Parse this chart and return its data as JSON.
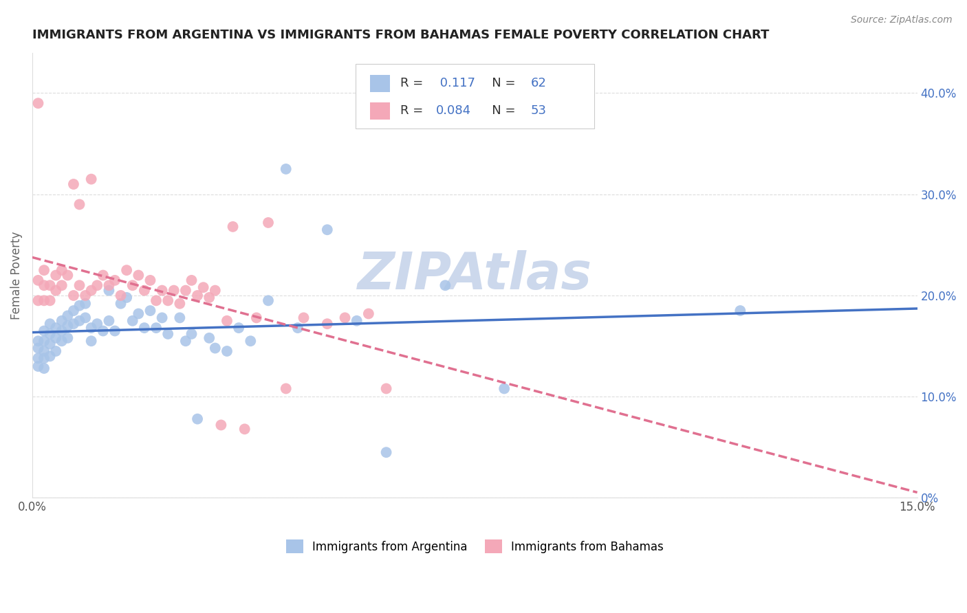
{
  "title": "IMMIGRANTS FROM ARGENTINA VS IMMIGRANTS FROM BAHAMAS FEMALE POVERTY CORRELATION CHART",
  "source": "Source: ZipAtlas.com",
  "ylabel": "Female Poverty",
  "legend1_label": "Immigrants from Argentina",
  "legend2_label": "Immigrants from Bahamas",
  "R_argentina": 0.117,
  "N_argentina": 62,
  "R_bahamas": 0.084,
  "N_bahamas": 53,
  "color_argentina": "#a8c4e8",
  "color_bahamas": "#f4a8b8",
  "line_color_argentina": "#4472c4",
  "line_color_bahamas": "#e07090",
  "watermark_color": "#ccd8ec",
  "background_color": "#ffffff",
  "xlim": [
    0.0,
    0.15
  ],
  "ylim": [
    0.0,
    0.44
  ],
  "right_ytick_vals": [
    0.0,
    0.1,
    0.2,
    0.3,
    0.4
  ],
  "right_ytick_labels": [
    "0%",
    "10.0%",
    "20.0%",
    "30.0%",
    "40.0%"
  ],
  "argentina_x": [
    0.001,
    0.001,
    0.001,
    0.001,
    0.002,
    0.002,
    0.002,
    0.002,
    0.002,
    0.003,
    0.003,
    0.003,
    0.003,
    0.004,
    0.004,
    0.004,
    0.005,
    0.005,
    0.005,
    0.006,
    0.006,
    0.006,
    0.007,
    0.007,
    0.008,
    0.008,
    0.009,
    0.009,
    0.01,
    0.01,
    0.011,
    0.012,
    0.013,
    0.013,
    0.014,
    0.015,
    0.016,
    0.017,
    0.018,
    0.019,
    0.02,
    0.021,
    0.022,
    0.023,
    0.025,
    0.026,
    0.027,
    0.028,
    0.03,
    0.031,
    0.033,
    0.035,
    0.037,
    0.04,
    0.043,
    0.045,
    0.05,
    0.055,
    0.06,
    0.07,
    0.08,
    0.12
  ],
  "argentina_y": [
    0.155,
    0.148,
    0.138,
    0.13,
    0.165,
    0.155,
    0.145,
    0.138,
    0.128,
    0.172,
    0.162,
    0.152,
    0.14,
    0.168,
    0.158,
    0.145,
    0.175,
    0.165,
    0.155,
    0.18,
    0.17,
    0.158,
    0.185,
    0.172,
    0.19,
    0.175,
    0.192,
    0.178,
    0.168,
    0.155,
    0.172,
    0.165,
    0.205,
    0.175,
    0.165,
    0.192,
    0.198,
    0.175,
    0.182,
    0.168,
    0.185,
    0.168,
    0.178,
    0.162,
    0.178,
    0.155,
    0.162,
    0.078,
    0.158,
    0.148,
    0.145,
    0.168,
    0.155,
    0.195,
    0.325,
    0.168,
    0.265,
    0.175,
    0.045,
    0.21,
    0.108,
    0.185
  ],
  "bahamas_x": [
    0.001,
    0.001,
    0.001,
    0.002,
    0.002,
    0.002,
    0.003,
    0.003,
    0.004,
    0.004,
    0.005,
    0.005,
    0.006,
    0.007,
    0.007,
    0.008,
    0.008,
    0.009,
    0.01,
    0.01,
    0.011,
    0.012,
    0.013,
    0.014,
    0.015,
    0.016,
    0.017,
    0.018,
    0.019,
    0.02,
    0.021,
    0.022,
    0.023,
    0.024,
    0.025,
    0.026,
    0.027,
    0.028,
    0.029,
    0.03,
    0.031,
    0.032,
    0.033,
    0.034,
    0.036,
    0.038,
    0.04,
    0.043,
    0.046,
    0.05,
    0.053,
    0.057,
    0.06
  ],
  "bahamas_y": [
    0.39,
    0.215,
    0.195,
    0.225,
    0.21,
    0.195,
    0.21,
    0.195,
    0.22,
    0.205,
    0.225,
    0.21,
    0.22,
    0.31,
    0.2,
    0.29,
    0.21,
    0.2,
    0.315,
    0.205,
    0.21,
    0.22,
    0.21,
    0.215,
    0.2,
    0.225,
    0.21,
    0.22,
    0.205,
    0.215,
    0.195,
    0.205,
    0.195,
    0.205,
    0.192,
    0.205,
    0.215,
    0.2,
    0.208,
    0.198,
    0.205,
    0.072,
    0.175,
    0.268,
    0.068,
    0.178,
    0.272,
    0.108,
    0.178,
    0.172,
    0.178,
    0.182,
    0.108
  ]
}
